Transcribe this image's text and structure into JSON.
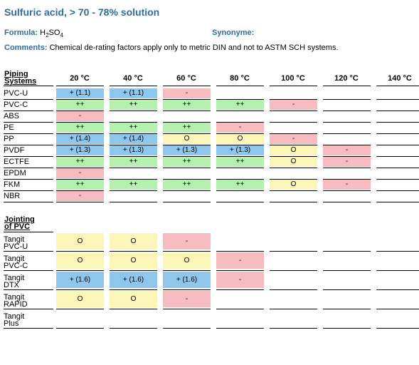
{
  "title": "Sulfuric acid, > 70 - 78% solution",
  "formula": {
    "label": "Formula:",
    "value_main": "H",
    "value_sub1": "2",
    "value_mid": "SO",
    "value_sub2": "4"
  },
  "synonyme": {
    "label": "Synonyme:",
    "value": ""
  },
  "comments": {
    "label": "Comments:",
    "value": "Chemical de-rating factors apply only to metric DIN and not to ASTM SCH systems."
  },
  "colors": {
    "green": "#b6f0b0",
    "blue": "#8ec6ec",
    "pink": "#f7bcc0",
    "yellow": "#fbf5b8",
    "accent": "#2e6da4"
  },
  "temperatures": [
    "20 °C",
    "40 °C",
    "60 °C",
    "80 °C",
    "100 °C",
    "120 °C",
    "140 °C"
  ],
  "piping": {
    "header_line1": "Piping",
    "header_line2": "Systems",
    "rows": [
      {
        "name": "PVC-U",
        "cells": [
          {
            "v": "+ (1.1)",
            "c": "blue"
          },
          {
            "v": "+ (1.1)",
            "c": "blue"
          },
          {
            "v": "-",
            "c": "pink"
          },
          {
            "v": "",
            "c": ""
          },
          {
            "v": "",
            "c": ""
          },
          {
            "v": "",
            "c": ""
          },
          {
            "v": "",
            "c": ""
          }
        ]
      },
      {
        "name": "PVC-C",
        "cells": [
          {
            "v": "++",
            "c": "green"
          },
          {
            "v": "++",
            "c": "green"
          },
          {
            "v": "++",
            "c": "green"
          },
          {
            "v": "++",
            "c": "green"
          },
          {
            "v": "-",
            "c": "pink"
          },
          {
            "v": "",
            "c": ""
          },
          {
            "v": "",
            "c": ""
          }
        ]
      },
      {
        "name": "ABS",
        "cells": [
          {
            "v": "-",
            "c": "pink"
          },
          {
            "v": "",
            "c": ""
          },
          {
            "v": "",
            "c": ""
          },
          {
            "v": "",
            "c": ""
          },
          {
            "v": "",
            "c": ""
          },
          {
            "v": "",
            "c": ""
          },
          {
            "v": "",
            "c": ""
          }
        ]
      },
      {
        "name": "PE",
        "cells": [
          {
            "v": "++",
            "c": "green"
          },
          {
            "v": "++",
            "c": "green"
          },
          {
            "v": "++",
            "c": "green"
          },
          {
            "v": "-",
            "c": "pink"
          },
          {
            "v": "",
            "c": ""
          },
          {
            "v": "",
            "c": ""
          },
          {
            "v": "",
            "c": ""
          }
        ]
      },
      {
        "name": "PP",
        "cells": [
          {
            "v": "+ (1.4)",
            "c": "blue"
          },
          {
            "v": "+ (1.4)",
            "c": "blue"
          },
          {
            "v": "O",
            "c": "yellow"
          },
          {
            "v": "O",
            "c": "yellow"
          },
          {
            "v": "-",
            "c": "pink"
          },
          {
            "v": "",
            "c": ""
          },
          {
            "v": "",
            "c": ""
          }
        ]
      },
      {
        "name": "PVDF",
        "cells": [
          {
            "v": "+ (1.3)",
            "c": "blue"
          },
          {
            "v": "+ (1.3)",
            "c": "blue"
          },
          {
            "v": "+ (1.3)",
            "c": "blue"
          },
          {
            "v": "+ (1.3)",
            "c": "blue"
          },
          {
            "v": "O",
            "c": "yellow"
          },
          {
            "v": "-",
            "c": "pink"
          },
          {
            "v": "",
            "c": ""
          }
        ]
      },
      {
        "name": "ECTFE",
        "cells": [
          {
            "v": "++",
            "c": "green"
          },
          {
            "v": "++",
            "c": "green"
          },
          {
            "v": "++",
            "c": "green"
          },
          {
            "v": "++",
            "c": "green"
          },
          {
            "v": "O",
            "c": "yellow"
          },
          {
            "v": "-",
            "c": "pink"
          },
          {
            "v": "",
            "c": ""
          }
        ]
      },
      {
        "name": "EPDM",
        "cells": [
          {
            "v": "-",
            "c": "pink"
          },
          {
            "v": "",
            "c": ""
          },
          {
            "v": "",
            "c": ""
          },
          {
            "v": "",
            "c": ""
          },
          {
            "v": "",
            "c": ""
          },
          {
            "v": "",
            "c": ""
          },
          {
            "v": "",
            "c": ""
          }
        ]
      },
      {
        "name": "FKM",
        "cells": [
          {
            "v": "++",
            "c": "green"
          },
          {
            "v": "++",
            "c": "green"
          },
          {
            "v": "++",
            "c": "green"
          },
          {
            "v": "++",
            "c": "green"
          },
          {
            "v": "O",
            "c": "yellow"
          },
          {
            "v": "-",
            "c": "pink"
          },
          {
            "v": "",
            "c": ""
          }
        ]
      },
      {
        "name": "NBR",
        "cells": [
          {
            "v": "-",
            "c": "pink"
          },
          {
            "v": "",
            "c": ""
          },
          {
            "v": "",
            "c": ""
          },
          {
            "v": "",
            "c": ""
          },
          {
            "v": "",
            "c": ""
          },
          {
            "v": "",
            "c": ""
          },
          {
            "v": "",
            "c": ""
          }
        ]
      }
    ]
  },
  "jointing": {
    "header_line1": "Jointing",
    "header_line2": "of PVC",
    "rows": [
      {
        "line1": "Tangit",
        "line2": "PVC-U",
        "cells": [
          {
            "v": "O",
            "c": "yellow"
          },
          {
            "v": "O",
            "c": "yellow"
          },
          {
            "v": "-",
            "c": "pink"
          },
          {
            "v": "",
            "c": ""
          },
          {
            "v": "",
            "c": ""
          },
          {
            "v": "",
            "c": ""
          },
          {
            "v": "",
            "c": ""
          }
        ]
      },
      {
        "line1": "Tangit",
        "line2": "PVC-C",
        "cells": [
          {
            "v": "O",
            "c": "yellow"
          },
          {
            "v": "O",
            "c": "yellow"
          },
          {
            "v": "O",
            "c": "yellow"
          },
          {
            "v": "-",
            "c": "pink"
          },
          {
            "v": "",
            "c": ""
          },
          {
            "v": "",
            "c": ""
          },
          {
            "v": "",
            "c": ""
          }
        ]
      },
      {
        "line1": "Tangit",
        "line2": "DTX",
        "cells": [
          {
            "v": "+ (1.6)",
            "c": "blue"
          },
          {
            "v": "+ (1.6)",
            "c": "blue"
          },
          {
            "v": "+ (1.6)",
            "c": "blue"
          },
          {
            "v": "-",
            "c": "pink"
          },
          {
            "v": "",
            "c": ""
          },
          {
            "v": "",
            "c": ""
          },
          {
            "v": "",
            "c": ""
          }
        ]
      },
      {
        "line1": "Tangit",
        "line2": "RAPID",
        "cells": [
          {
            "v": "O",
            "c": "yellow"
          },
          {
            "v": "O",
            "c": "yellow"
          },
          {
            "v": "-",
            "c": "pink"
          },
          {
            "v": "",
            "c": ""
          },
          {
            "v": "",
            "c": ""
          },
          {
            "v": "",
            "c": ""
          },
          {
            "v": "",
            "c": ""
          }
        ]
      },
      {
        "line1": "Tangit",
        "line2": "Plus",
        "cells": [
          {
            "v": "",
            "c": ""
          },
          {
            "v": "",
            "c": ""
          },
          {
            "v": "",
            "c": ""
          },
          {
            "v": "",
            "c": ""
          },
          {
            "v": "",
            "c": ""
          },
          {
            "v": "",
            "c": ""
          },
          {
            "v": "",
            "c": ""
          }
        ]
      }
    ]
  }
}
